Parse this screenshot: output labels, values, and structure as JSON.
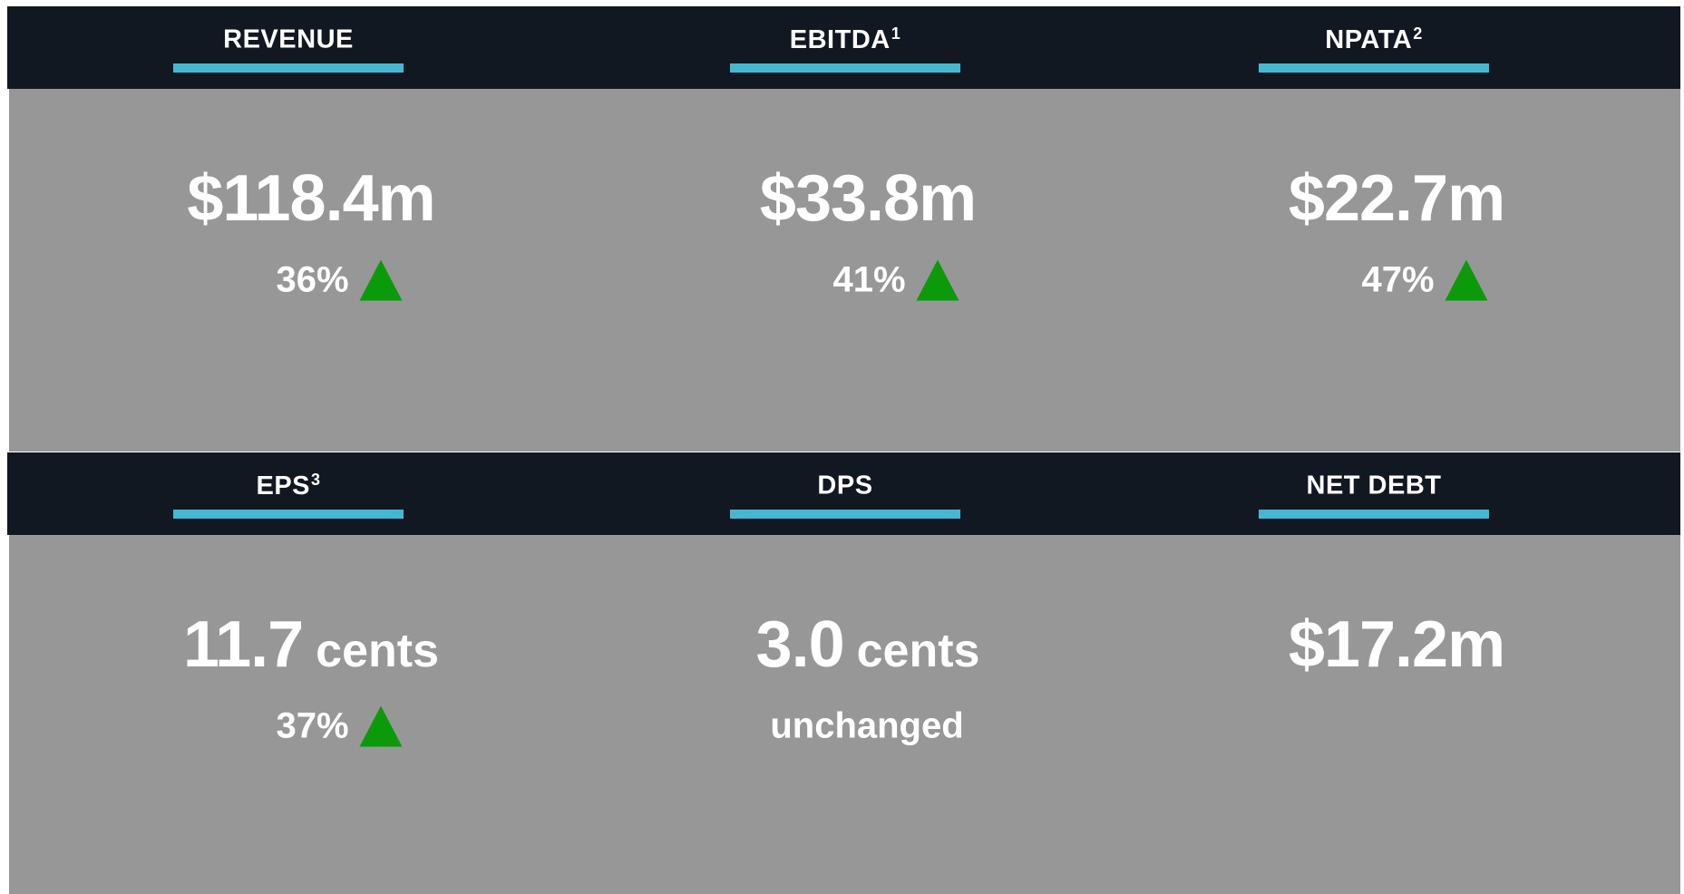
{
  "cards": [
    {
      "title": "REVENUE",
      "value": "$118.4m",
      "change": "36%",
      "direction": "up"
    },
    {
      "title": "EBITDA",
      "note": "1",
      "value": "$33.8m",
      "change": "41%",
      "direction": "up"
    },
    {
      "title": "NPATA",
      "note": "2",
      "value": "$22.7m",
      "change": "47%",
      "direction": "up"
    },
    {
      "title": "EPS",
      "note": "3",
      "value": "11.7",
      "unit": "cents",
      "change": "37%",
      "direction": "up"
    },
    {
      "title": "DPS",
      "value": "3.0",
      "unit": "cents",
      "change": "unchanged"
    },
    {
      "title": "NET DEBT",
      "value": "$17.2m"
    }
  ]
}
